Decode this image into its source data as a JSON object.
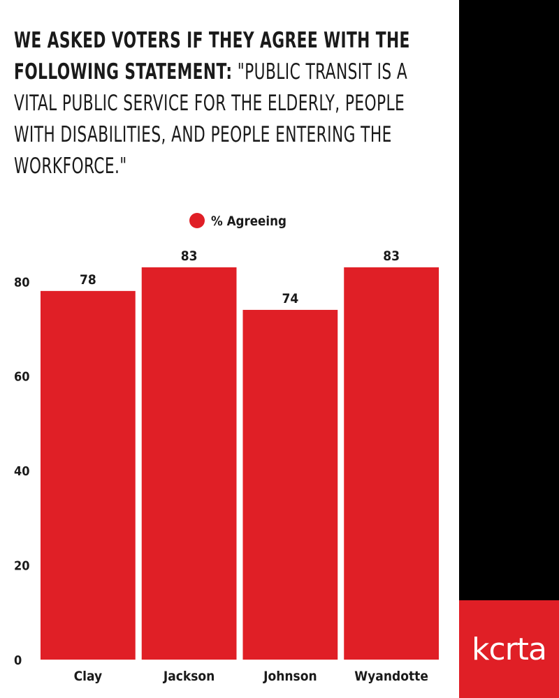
{
  "title": {
    "bold": "WE ASKED VOTERS IF THEY AGREE WITH THE FOLLOWING STATEMENT:",
    "light": "\"PUBLIC TRANSIT IS A VITAL PUBLIC SERVICE FOR THE ELDERLY, PEOPLE WITH DISABILITIES, AND PEOPLE ENTERING THE WORKFORCE.\""
  },
  "brand": {
    "logo_text": "kcrta"
  },
  "colors": {
    "bar": "#e01f26",
    "sidebar": "#000000",
    "text": "#1a1a1a"
  },
  "chart_data": {
    "type": "bar",
    "categories": [
      "Clay",
      "Jackson",
      "Johnson",
      "Wyandotte"
    ],
    "series": [
      {
        "name": "% Agreeing",
        "values": [
          78,
          83,
          74,
          83
        ]
      }
    ],
    "ylim": [
      0,
      83
    ],
    "yticks": [
      0,
      20,
      40,
      60,
      80
    ],
    "data_labels": true,
    "legend": "top-center",
    "grid": false
  }
}
